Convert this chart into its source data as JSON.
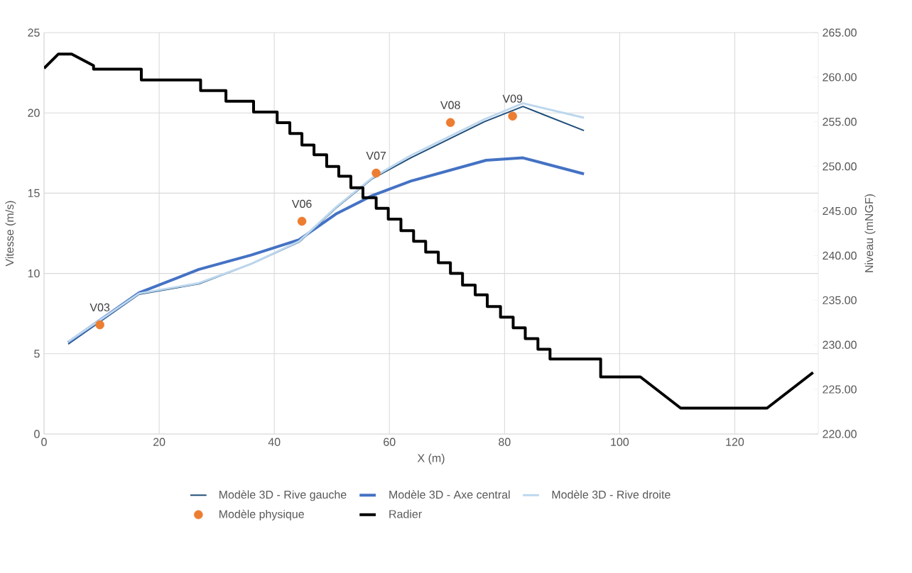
{
  "chart_data": {
    "type": "line",
    "xlabel": "X (m)",
    "ylabel": "Vitesse (m/s)",
    "y2label": "Niveau (mNGF)",
    "xlim": [
      0,
      134.5
    ],
    "xticks": [
      0,
      20,
      40,
      60,
      80,
      100,
      120
    ],
    "ylim": [
      0,
      25
    ],
    "yticks": [
      0,
      5,
      10,
      15,
      20,
      25
    ],
    "y2lim": [
      220,
      265
    ],
    "y2ticks": [
      {
        "value": 220,
        "label": "220.00"
      },
      {
        "value": 225,
        "label": "225.00"
      },
      {
        "value": 230,
        "label": "230.00"
      },
      {
        "value": 235,
        "label": "235.00"
      },
      {
        "value": 240,
        "label": "240.00"
      },
      {
        "value": 245,
        "label": "245.00"
      },
      {
        "value": 250,
        "label": "250.00"
      },
      {
        "value": 255,
        "label": "255.00"
      },
      {
        "value": 260,
        "label": "260.00"
      },
      {
        "value": 265,
        "label": "265.00"
      }
    ],
    "grid": true,
    "legend": "bottom",
    "series": [
      {
        "name": "Modèle 3D - Rive gauche",
        "color": "#1f4e79",
        "x": [
          4.2,
          16.5,
          26.9,
          36.0,
          44.3,
          50.8,
          57.0,
          63.7,
          76.5,
          83.2,
          93.8
        ],
        "values": [
          5.6,
          8.7,
          9.35,
          10.6,
          11.95,
          14.1,
          15.9,
          17.2,
          19.45,
          20.4,
          18.9
        ]
      },
      {
        "name": "Modèle 3D - Axe central",
        "color": "#4472c4",
        "x": [
          4.2,
          16.5,
          26.9,
          36.0,
          44.3,
          50.7,
          57.0,
          63.7,
          76.8,
          83.2,
          93.8
        ],
        "values": [
          5.7,
          8.8,
          10.25,
          11.15,
          12.1,
          13.7,
          14.85,
          15.75,
          17.05,
          17.2,
          16.2
        ]
      },
      {
        "name": "Modèle 3D - Rive droite",
        "color": "#bdd7ee",
        "x": [
          4.2,
          16.5,
          26.9,
          36.0,
          44.3,
          50.8,
          57.0,
          63.7,
          76.5,
          83.2,
          93.8
        ],
        "values": [
          5.75,
          8.75,
          9.4,
          10.6,
          12.0,
          14.15,
          15.95,
          17.35,
          19.6,
          20.6,
          19.7
        ]
      },
      {
        "name": "Modèle physique",
        "type": "scatter",
        "marker": "circle",
        "color": "#ed7d31",
        "x": [
          9.7,
          44.8,
          57.7,
          70.6,
          81.4
        ],
        "values": [
          6.8,
          13.25,
          16.25,
          19.4,
          19.8
        ]
      },
      {
        "name": "Radier",
        "axis": "y2",
        "color": "#000000",
        "x": [
          0,
          2.5,
          4.8,
          8.6,
          8.6,
          16.9,
          16.9,
          27.2,
          27.2,
          31.6,
          31.6,
          36.4,
          36.4,
          40.5,
          40.5,
          42.7,
          42.7,
          44.8,
          44.8,
          46.9,
          46.9,
          49.1,
          49.1,
          51.2,
          51.2,
          53.3,
          53.3,
          55.4,
          55.4,
          57.7,
          57.7,
          59.8,
          59.8,
          62.0,
          62.0,
          64.2,
          64.2,
          66.3,
          66.3,
          68.5,
          68.5,
          70.6,
          70.6,
          72.7,
          72.7,
          74.9,
          74.9,
          77.0,
          77.0,
          79.3,
          79.3,
          81.5,
          81.5,
          83.6,
          83.6,
          85.8,
          85.8,
          87.9,
          87.9,
          96.7,
          96.7,
          103.6,
          110.6,
          125.6,
          133.6
        ],
        "values": [
          261.0,
          262.6,
          262.6,
          261.3,
          260.9,
          260.9,
          259.7,
          259.7,
          258.5,
          258.5,
          257.3,
          257.3,
          256.1,
          256.1,
          254.9,
          254.9,
          253.7,
          253.7,
          252.4,
          252.4,
          251.3,
          251.3,
          250.0,
          250.0,
          248.9,
          248.9,
          247.6,
          247.6,
          246.5,
          246.5,
          245.3,
          245.3,
          244.1,
          244.1,
          242.8,
          242.8,
          241.6,
          241.6,
          240.4,
          240.4,
          239.2,
          239.2,
          238.0,
          238.0,
          236.7,
          236.7,
          235.6,
          235.6,
          234.3,
          234.3,
          233.1,
          233.1,
          231.9,
          231.9,
          230.7,
          230.7,
          229.5,
          229.5,
          228.4,
          228.4,
          226.4,
          226.4,
          222.9,
          222.9,
          226.9
        ]
      }
    ],
    "annotations": [
      {
        "text": "V03",
        "x": 9.7,
        "y": 6.8
      },
      {
        "text": "V06",
        "x": 44.8,
        "y": 13.25
      },
      {
        "text": "V07",
        "x": 57.7,
        "y": 16.25
      },
      {
        "text": "V08",
        "x": 70.6,
        "y": 19.4
      },
      {
        "text": "V09",
        "x": 81.4,
        "y": 19.8
      }
    ]
  }
}
